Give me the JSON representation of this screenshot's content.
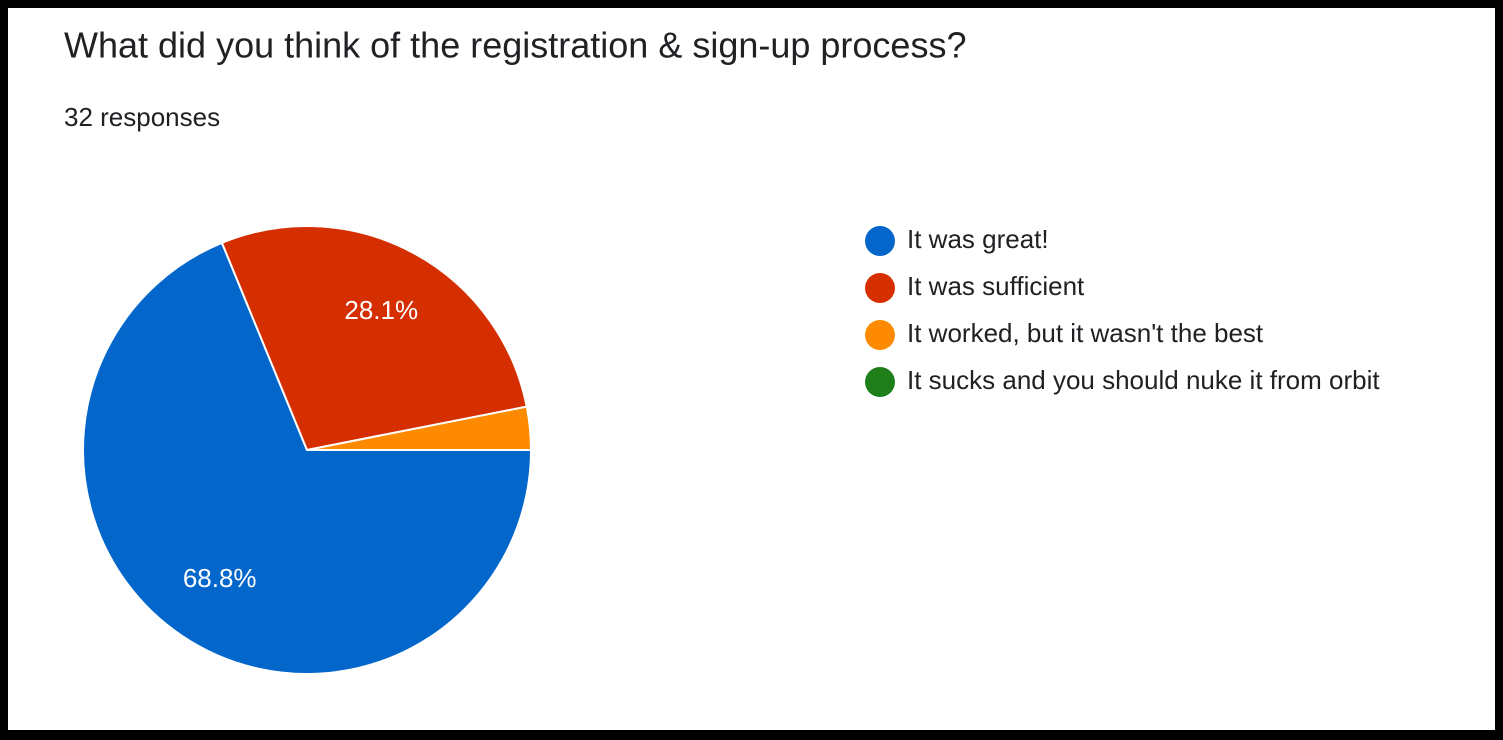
{
  "chart_data": {
    "type": "pie",
    "title": "What did you think of the registration & sign-up process?",
    "subtitle": "32 responses",
    "categories": [
      "It was great!",
      "It was sufficient",
      "It worked, but it wasn't the best",
      "It sucks and you should nuke it from orbit"
    ],
    "values": [
      68.8,
      28.1,
      3.1,
      0
    ],
    "value_labels": [
      "68.8%",
      "28.1%",
      null,
      null
    ],
    "colors": [
      "#0366cb",
      "#d52e01",
      "#fe8a02",
      "#1f7f1b"
    ],
    "legend": "right"
  }
}
